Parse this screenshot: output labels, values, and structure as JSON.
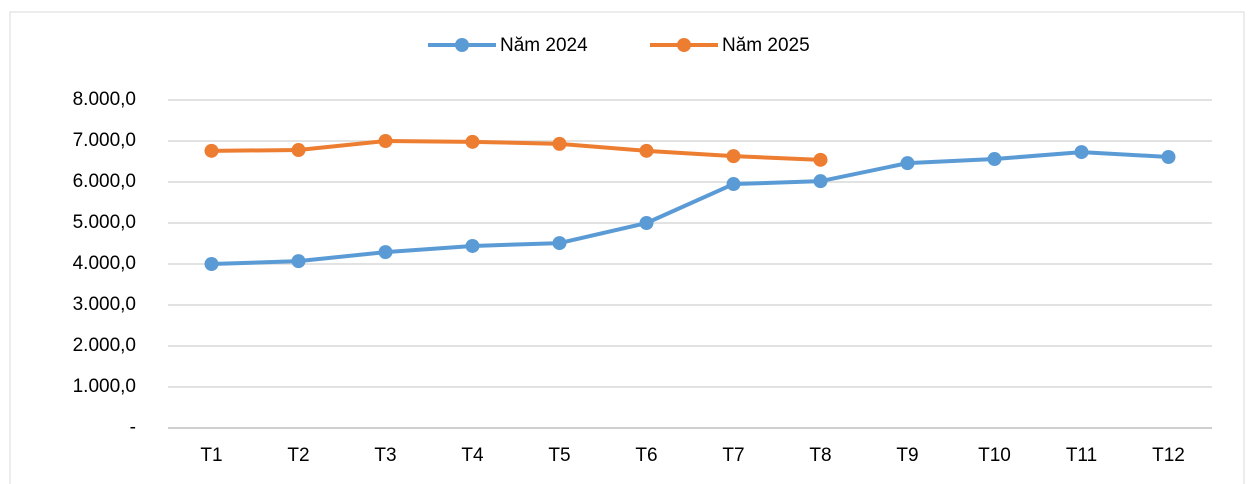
{
  "chart_data": {
    "type": "line",
    "categories": [
      "T1",
      "T2",
      "T3",
      "T4",
      "T5",
      "T6",
      "T7",
      "T8",
      "T9",
      "T10",
      "T11",
      "T12"
    ],
    "series": [
      {
        "name": "Năm 2024",
        "color": "#5b9bd5",
        "values": [
          4000,
          4070,
          4290,
          4440,
          4510,
          5000,
          5950,
          6020,
          6460,
          6560,
          6730,
          6610
        ]
      },
      {
        "name": "Năm 2025",
        "color": "#ed7d31",
        "values": [
          6760,
          6780,
          7000,
          6980,
          6930,
          6760,
          6630,
          6540,
          null,
          null,
          null,
          null
        ]
      }
    ],
    "ylim": [
      0,
      8000
    ],
    "yticks": [
      {
        "value": 0,
        "label": "-"
      },
      {
        "value": 1000,
        "label": "1.000,0"
      },
      {
        "value": 2000,
        "label": "2.000,0"
      },
      {
        "value": 3000,
        "label": "3.000,0"
      },
      {
        "value": 4000,
        "label": "4.000,0"
      },
      {
        "value": 5000,
        "label": "5.000,0"
      },
      {
        "value": 6000,
        "label": "6.000,0"
      },
      {
        "value": 7000,
        "label": "7.000,0"
      },
      {
        "value": 8000,
        "label": "8.000,0"
      }
    ],
    "grid": true,
    "legend": "top"
  }
}
